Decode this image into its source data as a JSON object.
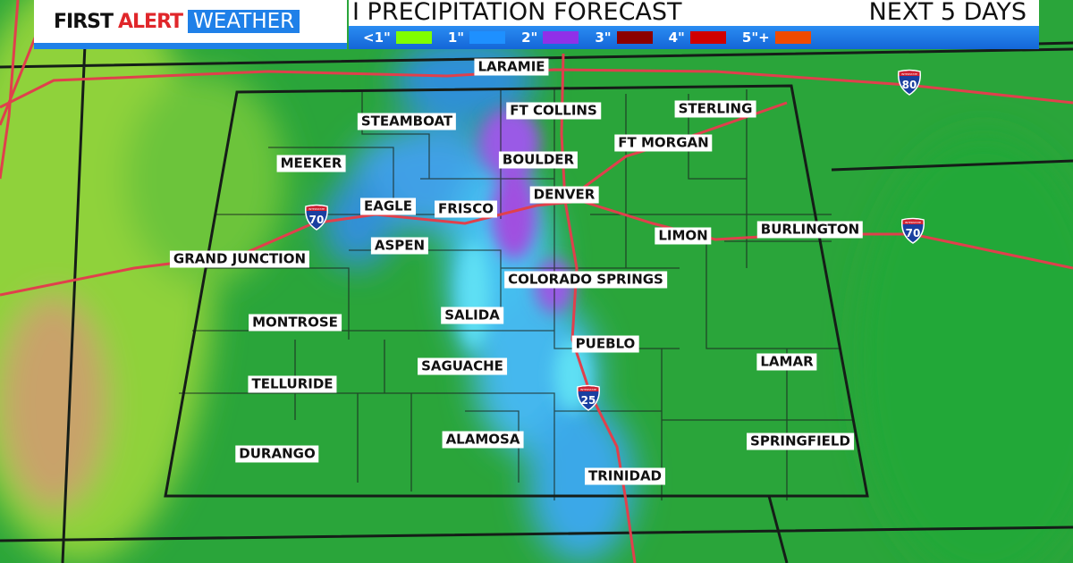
{
  "header": {
    "logo": {
      "first": "FIRST",
      "alert": "ALERT",
      "weather": "WEATHER"
    },
    "title": "I PRECIPITATION FORECAST",
    "period": "NEXT 5 DAYS"
  },
  "legend": [
    {
      "label": "<1\"",
      "color": "#80ff00"
    },
    {
      "label": "1\"",
      "color": "#1e90ff"
    },
    {
      "label": "2\"",
      "color": "#9030e8"
    },
    {
      "label": "3\"",
      "color": "#8b0000"
    },
    {
      "label": "4\"",
      "color": "#d00000"
    },
    {
      "label": "5\"+",
      "color": "#f04a00"
    }
  ],
  "cities": [
    "LARAMIE",
    "FT COLLINS",
    "STEAMBOAT",
    "STERLING",
    "FT MORGAN",
    "BOULDER",
    "MEEKER",
    "DENVER",
    "EAGLE",
    "FRISCO",
    "ASPEN",
    "LIMON",
    "BURLINGTON",
    "GRAND JUNCTION",
    "COLORADO SPRINGS",
    "MONTROSE",
    "SALIDA",
    "PUEBLO",
    "LAMAR",
    "SAGUACHE",
    "TELLURIDE",
    "ALAMOSA",
    "SPRINGFIELD",
    "DURANGO",
    "TRINIDAD"
  ],
  "interstates": [
    "70",
    "70",
    "80",
    "25"
  ],
  "shield_label": "INTERSTATE"
}
